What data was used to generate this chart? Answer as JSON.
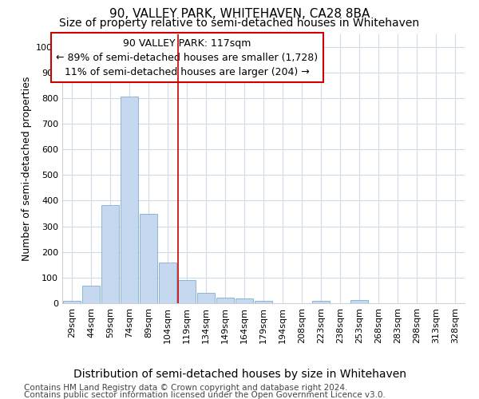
{
  "title": "90, VALLEY PARK, WHITEHAVEN, CA28 8BA",
  "subtitle": "Size of property relative to semi-detached houses in Whitehaven",
  "xlabel": "Distribution of semi-detached houses by size in Whitehaven",
  "ylabel": "Number of semi-detached properties",
  "footnote1": "Contains HM Land Registry data © Crown copyright and database right 2024.",
  "footnote2": "Contains public sector information licensed under the Open Government Licence v3.0.",
  "annotation_title": "90 VALLEY PARK: 117sqm",
  "annotation_line2": "← 89% of semi-detached houses are smaller (1,728)",
  "annotation_line3": "11% of semi-detached houses are larger (204) →",
  "bar_labels": [
    "29sqm",
    "44sqm",
    "59sqm",
    "74sqm",
    "89sqm",
    "104sqm",
    "119sqm",
    "134sqm",
    "149sqm",
    "164sqm",
    "179sqm",
    "194sqm",
    "208sqm",
    "223sqm",
    "238sqm",
    "253sqm",
    "268sqm",
    "283sqm",
    "298sqm",
    "313sqm",
    "328sqm"
  ],
  "bar_values": [
    8,
    68,
    383,
    805,
    350,
    160,
    90,
    42,
    22,
    18,
    10,
    0,
    0,
    10,
    0,
    12,
    0,
    0,
    0,
    0,
    0
  ],
  "bar_color": "#c5d8f0",
  "bar_edge_color": "#7bafd4",
  "highlight_line_index": 6,
  "highlight_line_color": "#cc0000",
  "ylim": [
    0,
    1050
  ],
  "yticks": [
    0,
    100,
    200,
    300,
    400,
    500,
    600,
    700,
    800,
    900,
    1000
  ],
  "background_color": "#ffffff",
  "plot_bg_color": "#ffffff",
  "grid_color": "#d0daea",
  "annotation_box_color": "#ffffff",
  "annotation_box_edge": "#cc0000",
  "title_fontsize": 11,
  "subtitle_fontsize": 10,
  "xlabel_fontsize": 10,
  "ylabel_fontsize": 9,
  "tick_fontsize": 8,
  "annotation_fontsize": 9,
  "footnote_fontsize": 7.5
}
